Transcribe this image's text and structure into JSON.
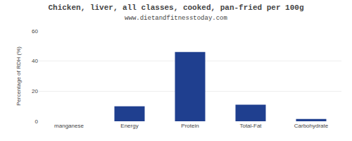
{
  "chart_data": {
    "type": "bar",
    "title": "Chicken, liver, all classes, cooked, pan-fried per 100g",
    "subtitle": "www.dietandfitnesstoday.com",
    "ylabel": "Percentage of RDH (%)",
    "categories": [
      "manganese",
      "Energy",
      "Protein",
      "Total-Fat",
      "Carbohydrate"
    ],
    "values": [
      0,
      10,
      46,
      11,
      1.5
    ],
    "color": "#1f3f8f",
    "ylim": [
      0,
      60
    ],
    "yticks": [
      0,
      20,
      40,
      60
    ],
    "grid": true
  }
}
